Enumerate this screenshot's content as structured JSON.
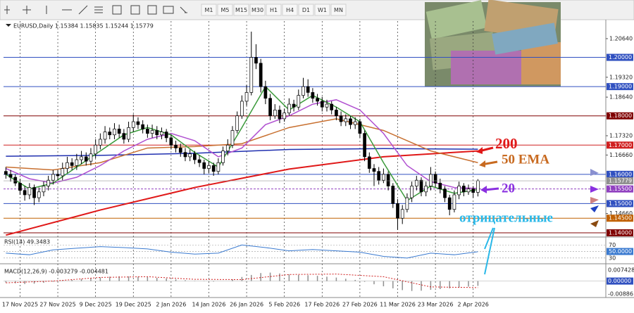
{
  "toolbar": {
    "timeframes": [
      "M1",
      "M5",
      "M15",
      "M30",
      "H1",
      "H4",
      "D1",
      "W1",
      "MN"
    ]
  },
  "chart_data": {
    "type": "candlestick",
    "title": "EURUSD,Daily  1.15384 1.15835 1.15244 1.15779",
    "up_color": "#ffffff",
    "down_color": "#000000",
    "grid": true,
    "xlim": [
      -0.5,
      127.1
    ],
    "ylim": [
      1.1388,
      1.2124
    ],
    "xticks": [
      {
        "value": 3,
        "label": "17 Nov 2025"
      },
      {
        "value": 11,
        "label": "27 Nov 2025"
      },
      {
        "value": 19,
        "label": "9 Dec 2025"
      },
      {
        "value": 27,
        "label": "19 Dec 2025"
      },
      {
        "value": 35,
        "label": "2 Jan 2026"
      },
      {
        "value": 43,
        "label": "14 Jan 2026"
      },
      {
        "value": 51,
        "label": "26 Jan 2026"
      },
      {
        "value": 59,
        "label": "5 Feb 2026"
      },
      {
        "value": 67,
        "label": "17 Feb 2026"
      },
      {
        "value": 75,
        "label": "27 Feb 2026"
      },
      {
        "value": 83,
        "label": "11 Mar 2026"
      },
      {
        "value": 91,
        "label": "23 Mar 2026"
      },
      {
        "value": 99,
        "label": "2 Apr 2026"
      }
    ],
    "yticks": [
      {
        "value": 1.2064,
        "label": "1.20640"
      },
      {
        "value": 1.1932,
        "label": "1.19320"
      },
      {
        "value": 1.1864,
        "label": "1.18640"
      },
      {
        "value": 1.1732,
        "label": "1.17320"
      },
      {
        "value": 1.1666,
        "label": "1.16660"
      },
      {
        "value": 1.1466,
        "label": "1.14660"
      }
    ],
    "levels": [
      {
        "value": 1.2,
        "label": "1.20000",
        "color": "#3050c0"
      },
      {
        "value": 1.19,
        "label": "1.19000",
        "color": "#3050c0"
      },
      {
        "value": 1.18,
        "label": "1.18000",
        "color": "#800000"
      },
      {
        "value": 1.17,
        "label": "1.17000",
        "color": "#d02020"
      },
      {
        "value": 1.16,
        "label": "1.16000",
        "color": "#3050c0"
      },
      {
        "value": 1.155,
        "label": "1.15500",
        "color": "#9040c0"
      },
      {
        "value": 1.15,
        "label": "1.15000",
        "color": "#3050c0"
      },
      {
        "value": 1.145,
        "label": "1.14500",
        "color": "#c06000"
      },
      {
        "value": 1.14,
        "label": "1.14000",
        "color": "#800000"
      }
    ],
    "ohlc": [
      [
        1.161,
        1.1625,
        1.1585,
        1.16
      ],
      [
        1.16,
        1.1615,
        1.1575,
        1.159
      ],
      [
        1.159,
        1.16,
        1.156,
        1.157
      ],
      [
        1.157,
        1.1585,
        1.153,
        1.1545
      ],
      [
        1.1545,
        1.156,
        1.151,
        1.153
      ],
      [
        1.153,
        1.157,
        1.1515,
        1.1555
      ],
      [
        1.1555,
        1.1565,
        1.1495,
        1.152
      ],
      [
        1.152,
        1.1555,
        1.1505,
        1.154
      ],
      [
        1.154,
        1.1575,
        1.1525,
        1.156
      ],
      [
        1.156,
        1.1595,
        1.1545,
        1.158
      ],
      [
        1.158,
        1.1615,
        1.1565,
        1.16
      ],
      [
        1.16,
        1.1615,
        1.158,
        1.1595
      ],
      [
        1.1595,
        1.164,
        1.158,
        1.162
      ],
      [
        1.162,
        1.166,
        1.1605,
        1.164
      ],
      [
        1.164,
        1.1655,
        1.1615,
        1.163
      ],
      [
        1.163,
        1.167,
        1.1615,
        1.165
      ],
      [
        1.165,
        1.168,
        1.1635,
        1.166
      ],
      [
        1.166,
        1.1675,
        1.163,
        1.1645
      ],
      [
        1.1645,
        1.169,
        1.163,
        1.167
      ],
      [
        1.167,
        1.172,
        1.1655,
        1.17
      ],
      [
        1.17,
        1.174,
        1.1685,
        1.172
      ],
      [
        1.172,
        1.1765,
        1.1705,
        1.1745
      ],
      [
        1.1745,
        1.176,
        1.172,
        1.1735
      ],
      [
        1.1735,
        1.1775,
        1.172,
        1.1755
      ],
      [
        1.1755,
        1.177,
        1.1725,
        1.174
      ],
      [
        1.174,
        1.1755,
        1.1705,
        1.172
      ],
      [
        1.172,
        1.178,
        1.171,
        1.176
      ],
      [
        1.176,
        1.1805,
        1.1745,
        1.178
      ],
      [
        1.178,
        1.1795,
        1.1755,
        1.177
      ],
      [
        1.177,
        1.1785,
        1.174,
        1.1755
      ],
      [
        1.1755,
        1.177,
        1.1725,
        1.174
      ],
      [
        1.174,
        1.177,
        1.1725,
        1.175
      ],
      [
        1.175,
        1.1765,
        1.172,
        1.1735
      ],
      [
        1.1735,
        1.176,
        1.172,
        1.1745
      ],
      [
        1.1745,
        1.1755,
        1.171,
        1.1725
      ],
      [
        1.1725,
        1.1735,
        1.1685,
        1.17
      ],
      [
        1.17,
        1.1715,
        1.1675,
        1.169
      ],
      [
        1.169,
        1.1705,
        1.166,
        1.1675
      ],
      [
        1.1675,
        1.169,
        1.1645,
        1.166
      ],
      [
        1.166,
        1.1685,
        1.1645,
        1.167
      ],
      [
        1.167,
        1.168,
        1.1635,
        1.165
      ],
      [
        1.165,
        1.1665,
        1.1625,
        1.164
      ],
      [
        1.164,
        1.165,
        1.16,
        1.162
      ],
      [
        1.162,
        1.1645,
        1.1605,
        1.163
      ],
      [
        1.163,
        1.164,
        1.1595,
        1.161
      ],
      [
        1.161,
        1.1655,
        1.16,
        1.164
      ],
      [
        1.164,
        1.1695,
        1.163,
        1.168
      ],
      [
        1.168,
        1.172,
        1.1665,
        1.17
      ],
      [
        1.17,
        1.1765,
        1.169,
        1.175
      ],
      [
        1.175,
        1.1815,
        1.174,
        1.18
      ],
      [
        1.18,
        1.187,
        1.179,
        1.185
      ],
      [
        1.185,
        1.1905,
        1.1835,
        1.188
      ],
      [
        1.188,
        1.2088,
        1.187,
        1.2
      ],
      [
        1.2,
        1.2045,
        1.196,
        1.198
      ],
      [
        1.198,
        1.1995,
        1.188,
        1.19
      ],
      [
        1.19,
        1.192,
        1.184,
        1.186
      ],
      [
        1.186,
        1.1875,
        1.1785,
        1.18
      ],
      [
        1.18,
        1.184,
        1.179,
        1.182
      ],
      [
        1.182,
        1.1835,
        1.1775,
        1.179
      ],
      [
        1.179,
        1.1825,
        1.178,
        1.181
      ],
      [
        1.181,
        1.186,
        1.18,
        1.184
      ],
      [
        1.184,
        1.1855,
        1.1815,
        1.183
      ],
      [
        1.183,
        1.189,
        1.182,
        1.187
      ],
      [
        1.187,
        1.193,
        1.186,
        1.19
      ],
      [
        1.19,
        1.1925,
        1.1865,
        1.188
      ],
      [
        1.188,
        1.1895,
        1.1845,
        1.186
      ],
      [
        1.186,
        1.1875,
        1.1835,
        1.185
      ],
      [
        1.185,
        1.1865,
        1.1815,
        1.183
      ],
      [
        1.183,
        1.1855,
        1.1815,
        1.184
      ],
      [
        1.184,
        1.185,
        1.1805,
        1.182
      ],
      [
        1.182,
        1.183,
        1.1785,
        1.18
      ],
      [
        1.18,
        1.1815,
        1.1765,
        1.178
      ],
      [
        1.178,
        1.1805,
        1.1765,
        1.179
      ],
      [
        1.179,
        1.18,
        1.1755,
        1.177
      ],
      [
        1.177,
        1.1795,
        1.1755,
        1.178
      ],
      [
        1.178,
        1.179,
        1.1725,
        1.174
      ],
      [
        1.174,
        1.175,
        1.1645,
        1.166
      ],
      [
        1.166,
        1.1675,
        1.1605,
        1.162
      ],
      [
        1.162,
        1.1635,
        1.156,
        1.161
      ],
      [
        1.161,
        1.1625,
        1.1565,
        1.158
      ],
      [
        1.158,
        1.162,
        1.157,
        1.16
      ],
      [
        1.16,
        1.161,
        1.1545,
        1.156
      ],
      [
        1.156,
        1.157,
        1.1485,
        1.15
      ],
      [
        1.15,
        1.1515,
        1.141,
        1.145
      ],
      [
        1.145,
        1.1495,
        1.143,
        1.148
      ],
      [
        1.148,
        1.1535,
        1.147,
        1.152
      ],
      [
        1.152,
        1.1575,
        1.1505,
        1.156
      ],
      [
        1.156,
        1.1595,
        1.1545,
        1.158
      ],
      [
        1.158,
        1.159,
        1.1525,
        1.154
      ],
      [
        1.154,
        1.1575,
        1.1525,
        1.156
      ],
      [
        1.156,
        1.1625,
        1.1545,
        1.16
      ],
      [
        1.16,
        1.161,
        1.1555,
        1.157
      ],
      [
        1.157,
        1.1585,
        1.1535,
        1.155
      ],
      [
        1.155,
        1.156,
        1.1505,
        1.152
      ],
      [
        1.152,
        1.153,
        1.146,
        1.148
      ],
      [
        1.148,
        1.1545,
        1.147,
        1.153
      ],
      [
        1.153,
        1.1575,
        1.1515,
        1.156
      ],
      [
        1.156,
        1.157,
        1.1525,
        1.154
      ],
      [
        1.154,
        1.1565,
        1.153,
        1.155
      ],
      [
        1.155,
        1.156,
        1.152,
        1.1538
      ],
      [
        1.15384,
        1.15835,
        1.15244,
        1.15779
      ]
    ],
    "lines": [
      {
        "color": "#e01818",
        "x": [
          0,
          20,
          40,
          60,
          80,
          100
        ],
        "values": [
          1.1392,
          1.1478,
          1.1555,
          1.1618,
          1.166,
          1.168
        ]
      },
      {
        "color": "#2030b0",
        "x": [
          0,
          20,
          40,
          60,
          80,
          100
        ],
        "values": [
          1.1662,
          1.1665,
          1.1672,
          1.1685,
          1.1688,
          1.1686
        ]
      },
      {
        "color": "#c87030",
        "x": [
          0,
          10,
          20,
          30,
          40,
          50,
          60,
          70,
          80,
          90,
          100
        ],
        "values": [
          1.1625,
          1.1615,
          1.164,
          1.169,
          1.1695,
          1.1705,
          1.176,
          1.179,
          1.175,
          1.168,
          1.164
        ]
      },
      {
        "color": "#b050d0",
        "x": [
          0,
          5,
          10,
          15,
          20,
          25,
          30,
          35,
          40,
          45,
          50,
          55,
          60,
          65,
          70,
          75,
          80,
          85,
          90,
          95,
          100
        ],
        "values": [
          1.162,
          1.1585,
          1.157,
          1.159,
          1.163,
          1.168,
          1.172,
          1.174,
          1.1715,
          1.166,
          1.169,
          1.177,
          1.18,
          1.184,
          1.1855,
          1.182,
          1.174,
          1.163,
          1.1575,
          1.1555,
          1.1552
        ]
      },
      {
        "color": "#3a9a3a",
        "x": [
          0,
          5,
          10,
          15,
          20,
          25,
          30,
          35,
          40,
          45,
          50,
          55,
          60,
          65,
          70,
          75,
          80,
          85,
          90,
          95,
          100
        ],
        "values": [
          1.16,
          1.155,
          1.157,
          1.1625,
          1.168,
          1.1735,
          1.176,
          1.1735,
          1.1675,
          1.1625,
          1.176,
          1.19,
          1.182,
          1.187,
          1.183,
          1.178,
          1.164,
          1.151,
          1.156,
          1.1535,
          1.1548
        ]
      }
    ],
    "annotations": [
      "200",
      "50 EMA",
      "20",
      "отрицательные"
    ],
    "rsi": {
      "title": "RSI(14) 49.3483",
      "color": "#3a7ad0",
      "ylim": [
        16.7,
        87.8
      ],
      "yticks": [
        70,
        {
          "value": 50,
          "label": "50.0000"
        },
        30
      ],
      "x": [
        0,
        5,
        10,
        15,
        20,
        25,
        30,
        35,
        40,
        45,
        50,
        55,
        60,
        65,
        70,
        75,
        80,
        85,
        90,
        95,
        100
      ],
      "values": [
        45,
        40,
        55,
        60,
        65,
        62,
        58,
        48,
        42,
        45,
        70,
        62,
        52,
        56,
        52,
        48,
        35,
        30,
        45,
        40,
        49.3483
      ]
    },
    "macd": {
      "title": "MACD(12,26,9) -0.003279 -0.004481",
      "ylim": [
        -0.0108,
        0.0109
      ],
      "yticks": [
        0.007428,
        {
          "value": 0,
          "label": "0.00000"
        },
        -0.00886
      ],
      "hist_color": "#909090",
      "signal_color": "#d02020",
      "hist_x": [
        0,
        2,
        4,
        6,
        8,
        10,
        12,
        14,
        16,
        18,
        20,
        22,
        24,
        26,
        28,
        30,
        32,
        34,
        36,
        38,
        40,
        42,
        44,
        46,
        48,
        50,
        52,
        54,
        56,
        58,
        60,
        62,
        64,
        66,
        68,
        70,
        72,
        74,
        76,
        78,
        80,
        82,
        84,
        86,
        88,
        90,
        92,
        94,
        96,
        98,
        100
      ],
      "hist": [
        -0.001,
        -0.0015,
        -0.002,
        -0.0018,
        -0.0012,
        -0.0005,
        0.0002,
        0.0008,
        0.0014,
        0.002,
        0.0025,
        0.003,
        0.0033,
        0.0032,
        0.003,
        0.0027,
        0.0022,
        0.0018,
        0.0012,
        0.0006,
        0.0002,
        -0.0002,
        -0.0004,
        0.0,
        0.0012,
        0.0028,
        0.0042,
        0.0055,
        0.0058,
        0.0052,
        0.0045,
        0.0042,
        0.004,
        0.0036,
        0.003,
        0.0024,
        0.0016,
        0.0008,
        -0.0005,
        -0.0022,
        -0.0036,
        -0.005,
        -0.0062,
        -0.0068,
        -0.0066,
        -0.006,
        -0.0055,
        -0.005,
        -0.0044,
        -0.0038,
        -0.003279
      ],
      "signal_x": [
        0,
        10,
        20,
        30,
        40,
        50,
        60,
        70,
        80,
        90,
        100
      ],
      "signal": [
        -0.0012,
        0.0,
        0.0025,
        0.003,
        0.0012,
        0.001,
        0.0045,
        0.0048,
        0.003,
        -0.004,
        -0.004481
      ]
    }
  }
}
